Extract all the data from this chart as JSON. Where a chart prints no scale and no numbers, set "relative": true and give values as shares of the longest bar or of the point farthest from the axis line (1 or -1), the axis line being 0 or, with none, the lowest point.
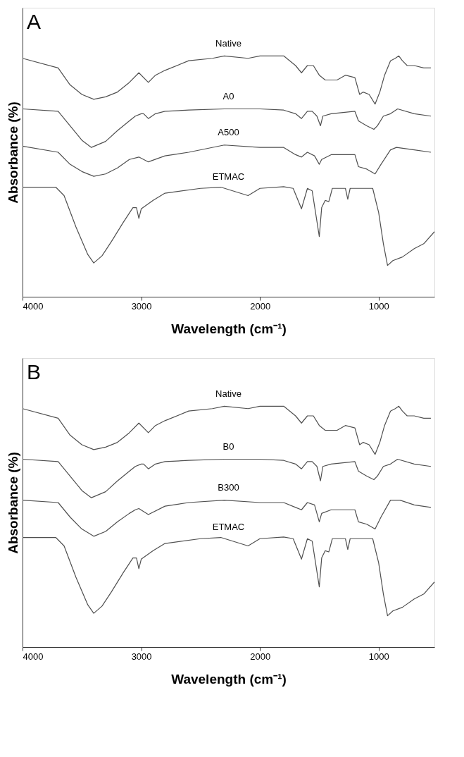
{
  "chart_data": [
    {
      "type": "line",
      "title": "A",
      "xlabel": "Wavelength (cm⁻¹)",
      "ylabel": "Absorbance (%)",
      "relative": true,
      "xlim": [
        4000,
        530
      ],
      "xticks": [
        4000,
        3000,
        2000,
        1000
      ],
      "tick_labels": "x",
      "grid": false,
      "legend": false,
      "series": [
        {
          "name": "Native",
          "color": "#505050",
          "x": [
            4000,
            3700,
            3600,
            3500,
            3400,
            3300,
            3200,
            3100,
            3020,
            2940,
            2880,
            2800,
            2600,
            2400,
            2300,
            2100,
            2000,
            1800,
            1700,
            1650,
            1600,
            1550,
            1500,
            1450,
            1350,
            1280,
            1200,
            1160,
            1130,
            1080,
            1030,
            990,
            950,
            900,
            860,
            830,
            800,
            760,
            700,
            620,
            560
          ],
          "values": [
            0.99,
            0.95,
            0.88,
            0.84,
            0.82,
            0.83,
            0.85,
            0.89,
            0.93,
            0.89,
            0.92,
            0.94,
            0.98,
            0.99,
            1.0,
            0.99,
            1.0,
            1.0,
            0.96,
            0.93,
            0.96,
            0.96,
            0.92,
            0.9,
            0.9,
            0.92,
            0.91,
            0.84,
            0.85,
            0.84,
            0.8,
            0.85,
            0.92,
            0.98,
            0.99,
            1.0,
            0.98,
            0.96,
            0.96,
            0.95,
            0.95
          ]
        },
        {
          "name": "A0",
          "color": "#505050",
          "x": [
            4000,
            3700,
            3600,
            3500,
            3420,
            3300,
            3200,
            3100,
            3050,
            3000,
            2980,
            2940,
            2880,
            2800,
            2600,
            2300,
            2000,
            1800,
            1700,
            1650,
            1600,
            1560,
            1520,
            1490,
            1470,
            1400,
            1300,
            1200,
            1170,
            1100,
            1040,
            1010,
            960,
            900,
            840,
            700,
            560
          ],
          "values": [
            0.78,
            0.77,
            0.71,
            0.65,
            0.62,
            0.645,
            0.69,
            0.73,
            0.75,
            0.76,
            0.76,
            0.74,
            0.76,
            0.77,
            0.775,
            0.78,
            0.78,
            0.775,
            0.76,
            0.74,
            0.77,
            0.77,
            0.75,
            0.71,
            0.75,
            0.76,
            0.765,
            0.77,
            0.73,
            0.71,
            0.695,
            0.71,
            0.75,
            0.76,
            0.78,
            0.76,
            0.75
          ]
        },
        {
          "name": "A500",
          "color": "#505050",
          "x": [
            4000,
            3700,
            3600,
            3500,
            3400,
            3300,
            3200,
            3100,
            3020,
            2940,
            2800,
            2600,
            2300,
            2000,
            1800,
            1700,
            1650,
            1600,
            1540,
            1500,
            1480,
            1400,
            1200,
            1170,
            1100,
            1030,
            980,
            900,
            850,
            700,
            560
          ],
          "values": [
            0.625,
            0.6,
            0.55,
            0.52,
            0.5,
            0.51,
            0.535,
            0.57,
            0.58,
            0.56,
            0.585,
            0.6,
            0.63,
            0.62,
            0.62,
            0.59,
            0.58,
            0.6,
            0.585,
            0.55,
            0.57,
            0.59,
            0.59,
            0.54,
            0.53,
            0.51,
            0.55,
            0.61,
            0.62,
            0.61,
            0.6
          ]
        },
        {
          "name": "ETMAC",
          "color": "#505050",
          "x": [
            4000,
            3720,
            3650,
            3550,
            3450,
            3400,
            3330,
            3250,
            3150,
            3070,
            3040,
            3020,
            3000,
            2900,
            2800,
            2500,
            2330,
            2100,
            2000,
            1800,
            1720,
            1650,
            1600,
            1560,
            1500,
            1480,
            1450,
            1420,
            1390,
            1330,
            1280,
            1260,
            1240,
            1140,
            1050,
            1000,
            960,
            925,
            880,
            800,
            700,
            620,
            530
          ],
          "values": [
            0.455,
            0.455,
            0.42,
            0.29,
            0.175,
            0.14,
            0.17,
            0.23,
            0.31,
            0.37,
            0.37,
            0.325,
            0.365,
            0.4,
            0.43,
            0.45,
            0.455,
            0.42,
            0.45,
            0.457,
            0.45,
            0.365,
            0.45,
            0.44,
            0.25,
            0.37,
            0.4,
            0.395,
            0.45,
            0.45,
            0.45,
            0.405,
            0.45,
            0.45,
            0.45,
            0.35,
            0.22,
            0.13,
            0.15,
            0.165,
            0.2,
            0.22,
            0.27
          ]
        }
      ]
    },
    {
      "type": "line",
      "title": "B",
      "xlabel": "Wavelength (cm⁻¹)",
      "ylabel": "Absorbance (%)",
      "relative": true,
      "xlim": [
        4000,
        530
      ],
      "xticks": [
        4000,
        3000,
        2000,
        1000
      ],
      "tick_labels": "x",
      "grid": false,
      "legend": false,
      "series": [
        {
          "name": "Native",
          "color": "#505050",
          "x": [
            4000,
            3700,
            3600,
            3500,
            3400,
            3300,
            3200,
            3100,
            3020,
            2940,
            2880,
            2800,
            2600,
            2400,
            2300,
            2100,
            2000,
            1800,
            1700,
            1650,
            1600,
            1550,
            1500,
            1450,
            1350,
            1280,
            1200,
            1160,
            1130,
            1080,
            1030,
            990,
            950,
            900,
            860,
            830,
            800,
            760,
            700,
            620,
            560
          ],
          "values": [
            0.99,
            0.95,
            0.88,
            0.84,
            0.82,
            0.83,
            0.85,
            0.89,
            0.93,
            0.89,
            0.92,
            0.94,
            0.98,
            0.99,
            1.0,
            0.99,
            1.0,
            1.0,
            0.96,
            0.93,
            0.96,
            0.96,
            0.92,
            0.9,
            0.9,
            0.92,
            0.91,
            0.84,
            0.85,
            0.84,
            0.8,
            0.85,
            0.92,
            0.98,
            0.99,
            1.0,
            0.98,
            0.96,
            0.96,
            0.95,
            0.95
          ]
        },
        {
          "name": "B0",
          "color": "#505050",
          "x": [
            4000,
            3700,
            3600,
            3500,
            3420,
            3300,
            3200,
            3100,
            3050,
            3000,
            2980,
            2940,
            2880,
            2800,
            2600,
            2300,
            2000,
            1800,
            1700,
            1650,
            1600,
            1560,
            1520,
            1490,
            1470,
            1400,
            1300,
            1200,
            1170,
            1100,
            1040,
            1010,
            960,
            900,
            840,
            700,
            560
          ],
          "values": [
            0.78,
            0.77,
            0.71,
            0.65,
            0.62,
            0.645,
            0.69,
            0.73,
            0.75,
            0.76,
            0.76,
            0.74,
            0.76,
            0.77,
            0.775,
            0.78,
            0.78,
            0.775,
            0.76,
            0.74,
            0.77,
            0.77,
            0.75,
            0.69,
            0.75,
            0.76,
            0.765,
            0.77,
            0.73,
            0.71,
            0.695,
            0.71,
            0.75,
            0.76,
            0.78,
            0.76,
            0.75
          ]
        },
        {
          "name": "B300",
          "color": "#505050",
          "x": [
            4000,
            3700,
            3600,
            3500,
            3400,
            3300,
            3200,
            3100,
            3050,
            3020,
            2940,
            2800,
            2600,
            2300,
            2000,
            1800,
            1700,
            1650,
            1600,
            1540,
            1500,
            1480,
            1400,
            1200,
            1170,
            1100,
            1030,
            980,
            900,
            820,
            700,
            560
          ],
          "values": [
            0.61,
            0.6,
            0.54,
            0.49,
            0.46,
            0.48,
            0.52,
            0.555,
            0.57,
            0.575,
            0.55,
            0.585,
            0.6,
            0.61,
            0.6,
            0.6,
            0.58,
            0.57,
            0.6,
            0.59,
            0.52,
            0.555,
            0.57,
            0.57,
            0.52,
            0.51,
            0.49,
            0.54,
            0.61,
            0.61,
            0.59,
            0.58
          ]
        },
        {
          "name": "ETMAC",
          "color": "#505050",
          "x": [
            4000,
            3720,
            3650,
            3550,
            3450,
            3400,
            3330,
            3250,
            3150,
            3070,
            3040,
            3020,
            3000,
            2900,
            2800,
            2500,
            2330,
            2100,
            2000,
            1800,
            1720,
            1650,
            1600,
            1560,
            1500,
            1480,
            1450,
            1420,
            1390,
            1330,
            1280,
            1260,
            1240,
            1140,
            1050,
            1000,
            960,
            925,
            880,
            800,
            700,
            620,
            530
          ],
          "values": [
            0.455,
            0.455,
            0.42,
            0.29,
            0.175,
            0.14,
            0.17,
            0.23,
            0.31,
            0.37,
            0.37,
            0.325,
            0.365,
            0.4,
            0.43,
            0.45,
            0.455,
            0.42,
            0.45,
            0.457,
            0.45,
            0.365,
            0.45,
            0.44,
            0.25,
            0.37,
            0.4,
            0.395,
            0.45,
            0.45,
            0.45,
            0.405,
            0.45,
            0.45,
            0.45,
            0.35,
            0.22,
            0.13,
            0.15,
            0.165,
            0.2,
            0.22,
            0.27
          ]
        }
      ]
    }
  ]
}
